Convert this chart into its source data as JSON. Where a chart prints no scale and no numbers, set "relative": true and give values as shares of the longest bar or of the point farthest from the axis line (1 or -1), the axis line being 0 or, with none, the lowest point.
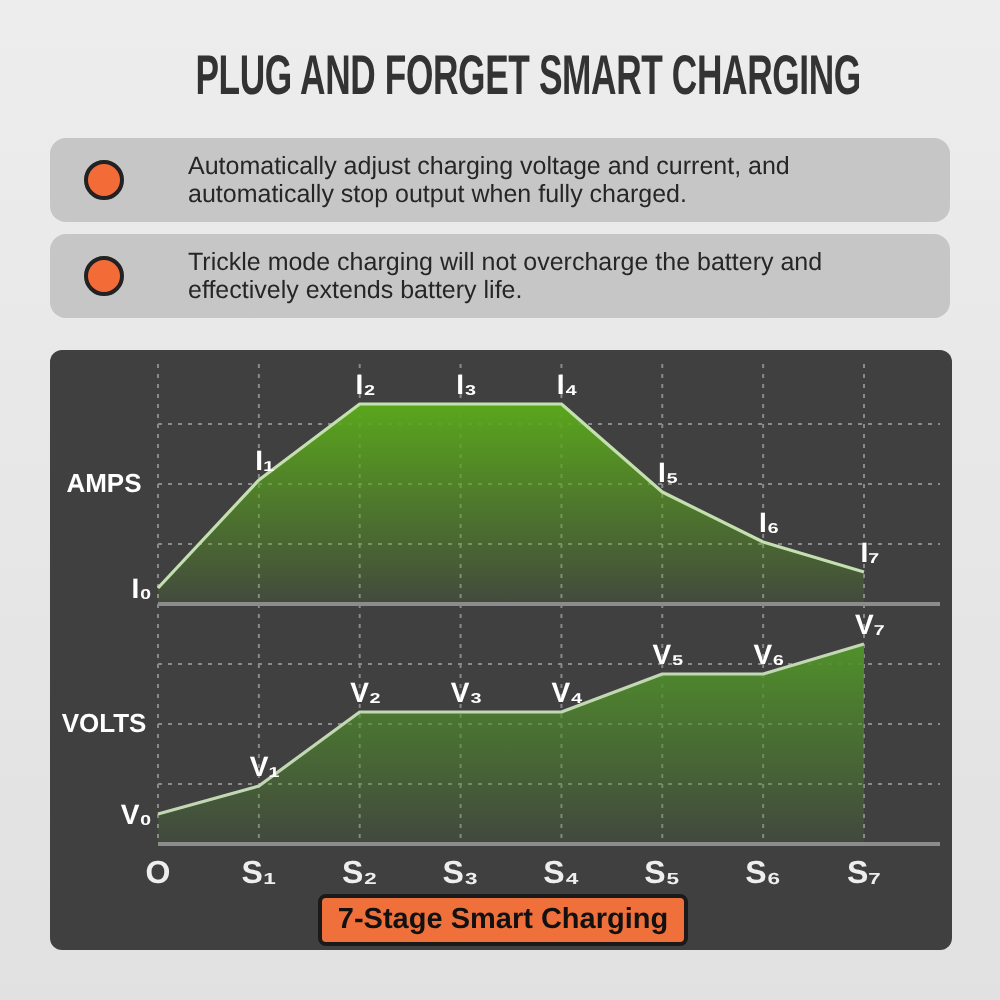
{
  "chart_data": [
    {
      "type": "area",
      "title": "PLUG AND FORGET SMART CHARGING",
      "ylabel": "AMPS",
      "categories": [
        "O",
        "S₁",
        "S₂",
        "S₃",
        "S₄",
        "S₅",
        "S₆",
        "S₇"
      ],
      "relative": true,
      "grid": true,
      "tick_labels": false,
      "annotations": [
        "Automatically adjust charging voltage and current, and automatically stop output when fully charged.",
        "Trickle mode charging will not overcharge the battery and effectively extends battery life.",
        {
          "text": "I₀",
          "x": "O",
          "y": 0.08
        },
        {
          "text": "I₁",
          "x": "S₁",
          "y": 0.62
        },
        {
          "text": "I₂",
          "x": "S₂",
          "y": 1
        },
        {
          "text": "I₃",
          "x": "S₃",
          "y": 1
        },
        {
          "text": "I₄",
          "x": "S₄",
          "y": 1
        },
        {
          "text": "I₅",
          "x": "S₅",
          "y": 0.56
        },
        {
          "text": "I₆",
          "x": "S₆",
          "y": 0.31
        },
        {
          "text": "I₇",
          "x": "S₇",
          "y": 0.16
        }
      ],
      "series": [
        {
          "color": "#5aa61c",
          "values": [
            0.08,
            0.62,
            1,
            1,
            1,
            0.56,
            0.31,
            0.16
          ]
        }
      ]
    },
    {
      "type": "area",
      "xlabel": "7-Stage Smart Charging",
      "ylabel": "VOLTS",
      "categories": [
        "O",
        "S₁",
        "S₂",
        "S₃",
        "S₄",
        "S₅",
        "S₆",
        "S₇"
      ],
      "relative": true,
      "grid": true,
      "tick_labels": "x",
      "annotations": [
        {
          "text": "V₀",
          "x": "O",
          "y": 0.15
        },
        {
          "text": "V₁",
          "x": "S₁",
          "y": 0.29
        },
        {
          "text": "V₂",
          "x": "S₂",
          "y": 0.66
        },
        {
          "text": "V₃",
          "x": "S₃",
          "y": 0.66
        },
        {
          "text": "V₄",
          "x": "S₄",
          "y": 0.66
        },
        {
          "text": "V₅",
          "x": "S₅",
          "y": 0.85
        },
        {
          "text": "V₆",
          "x": "S₆",
          "y": 0.85
        },
        {
          "text": "V₇",
          "x": "S₇",
          "y": 1
        }
      ],
      "series": [
        {
          "color": "#50902a",
          "values": [
            0.15,
            0.29,
            0.66,
            0.66,
            0.66,
            0.85,
            0.85,
            1
          ]
        }
      ]
    }
  ]
}
